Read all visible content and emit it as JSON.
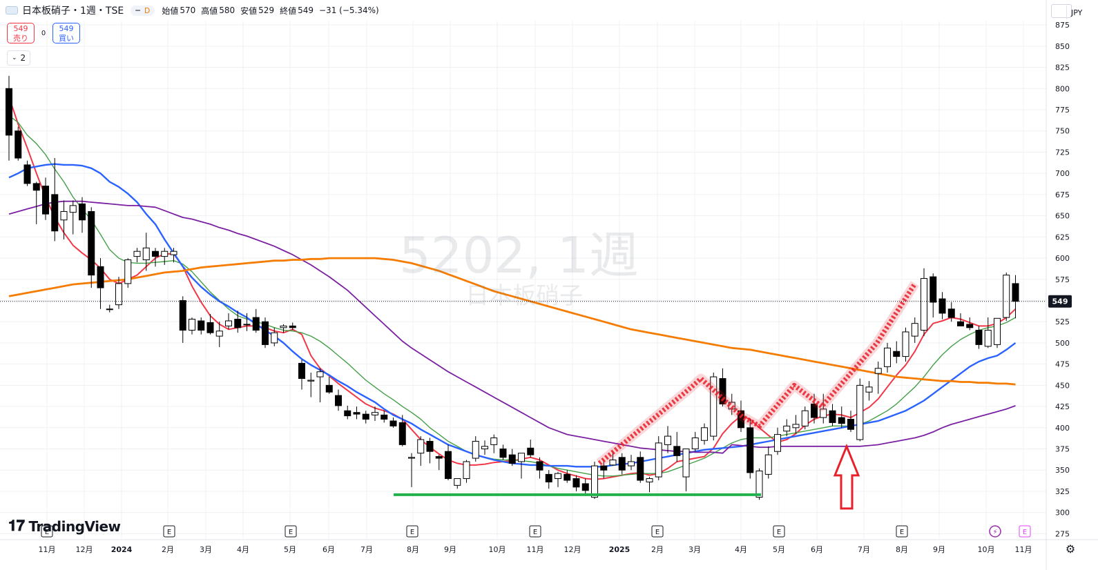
{
  "header": {
    "title": "日本板硝子・1週・TSE",
    "interval_badge": "D",
    "ohlc": [
      {
        "label": "始値",
        "value": "570"
      },
      {
        "label": "高値",
        "value": "580"
      },
      {
        "label": "安値",
        "value": "529"
      },
      {
        "label": "終値",
        "value": "549"
      },
      {
        "label": "",
        "value": "−31 (−5.34%)"
      }
    ]
  },
  "trade": {
    "sell_price": "549",
    "sell_label": "売り",
    "spread": "0",
    "buy_price": "549",
    "buy_label": "買い"
  },
  "indicators_toggle": "2",
  "watermark": {
    "symbol_line": "5202, 1週",
    "name_line": "日本板硝子"
  },
  "currency": "JPY",
  "branding": "TradingView",
  "colors": {
    "bull": "#ffffff",
    "bear": "#000000",
    "ma_red": "#f23645",
    "ma_green": "#43a047",
    "ma_blue": "#2962ff",
    "ma_purple": "#7b1fa2",
    "ma_orange": "#f57c00",
    "support_line": "#22b14c",
    "annotation": "#e8202a"
  },
  "chart_data": {
    "type": "candlestick",
    "y_ticks": [
      875,
      850,
      825,
      800,
      775,
      750,
      725,
      700,
      675,
      650,
      625,
      600,
      575,
      550,
      525,
      500,
      475,
      450,
      425,
      400,
      375,
      350,
      325,
      300,
      275
    ],
    "ylim": [
      268,
      880
    ],
    "last_price": "549",
    "x_labels": [
      "11月",
      "12月",
      "2024",
      "2月",
      "3月",
      "4月",
      "5月",
      "6月",
      "7月",
      "8月",
      "9月",
      "10月",
      "11月",
      "12月",
      "2025",
      "2月",
      "3月",
      "4月",
      "5月",
      "6月",
      "7月",
      "8月",
      "9月",
      "10月",
      "11月"
    ],
    "candles": [
      [
        800,
        815,
        715,
        745
      ],
      [
        750,
        755,
        715,
        718
      ],
      [
        710,
        715,
        685,
        688
      ],
      [
        688,
        690,
        640,
        680
      ],
      [
        685,
        695,
        645,
        652
      ],
      [
        675,
        718,
        620,
        632
      ],
      [
        645,
        668,
        622,
        655
      ],
      [
        654,
        668,
        628,
        662
      ],
      [
        664,
        672,
        630,
        645
      ],
      [
        655,
        660,
        565,
        580
      ],
      [
        590,
        600,
        540,
        565
      ],
      [
        540,
        545,
        536,
        540
      ],
      [
        545,
        578,
        540,
        570
      ],
      [
        570,
        600,
        565,
        598
      ],
      [
        602,
        612,
        595,
        608
      ],
      [
        598,
        630,
        585,
        612
      ],
      [
        608,
        612,
        590,
        602
      ],
      [
        602,
        612,
        592,
        608
      ],
      [
        604,
        612,
        595,
        608
      ],
      [
        550,
        555,
        500,
        515
      ],
      [
        515,
        530,
        510,
        528
      ],
      [
        526,
        530,
        510,
        515
      ],
      [
        524,
        534,
        510,
        512
      ],
      [
        508,
        525,
        495,
        514
      ],
      [
        520,
        535,
        516,
        526
      ],
      [
        528,
        538,
        512,
        518
      ],
      [
        522,
        535,
        514,
        522
      ],
      [
        530,
        540,
        512,
        515
      ],
      [
        525,
        530,
        494,
        498
      ],
      [
        500,
        518,
        496,
        512
      ],
      [
        518,
        522,
        512,
        520
      ],
      [
        520,
        524,
        515,
        518
      ],
      [
        476,
        480,
        445,
        458
      ],
      [
        455,
        465,
        436,
        456
      ],
      [
        460,
        470,
        430,
        466
      ],
      [
        450,
        460,
        440,
        442
      ],
      [
        438,
        445,
        420,
        426
      ],
      [
        420,
        426,
        410,
        414
      ],
      [
        418,
        425,
        410,
        416
      ],
      [
        416,
        420,
        405,
        410
      ],
      [
        415,
        425,
        408,
        418
      ],
      [
        415,
        420,
        406,
        410
      ],
      [
        408,
        412,
        400,
        402
      ],
      [
        406,
        415,
        378,
        380
      ],
      [
        364,
        370,
        330,
        365
      ],
      [
        370,
        390,
        355,
        386
      ],
      [
        384,
        388,
        358,
        372
      ],
      [
        366,
        368,
        350,
        364
      ],
      [
        372,
        380,
        338,
        340
      ],
      [
        332,
        340,
        328,
        340
      ],
      [
        340,
        362,
        335,
        360
      ],
      [
        364,
        390,
        360,
        384
      ],
      [
        375,
        385,
        368,
        378
      ],
      [
        380,
        392,
        370,
        388
      ],
      [
        375,
        380,
        362,
        365
      ],
      [
        368,
        375,
        355,
        358
      ],
      [
        360,
        370,
        340,
        370
      ],
      [
        376,
        386,
        365,
        368
      ],
      [
        360,
        365,
        340,
        350
      ],
      [
        345,
        350,
        328,
        336
      ],
      [
        340,
        348,
        330,
        346
      ],
      [
        345,
        350,
        335,
        338
      ],
      [
        340,
        344,
        325,
        330
      ],
      [
        334,
        340,
        322,
        326
      ],
      [
        318,
        360,
        316,
        355
      ],
      [
        355,
        362,
        340,
        350
      ],
      [
        356,
        372,
        355,
        362
      ],
      [
        365,
        370,
        345,
        350
      ],
      [
        355,
        368,
        350,
        360
      ],
      [
        365,
        372,
        335,
        338
      ],
      [
        336,
        342,
        324,
        340
      ],
      [
        342,
        390,
        338,
        382
      ],
      [
        380,
        402,
        370,
        390
      ],
      [
        378,
        395,
        360,
        367
      ],
      [
        342,
        372,
        325,
        375
      ],
      [
        375,
        395,
        372,
        388
      ],
      [
        385,
        405,
        380,
        400
      ],
      [
        390,
        465,
        385,
        460
      ],
      [
        458,
        470,
        425,
        428
      ],
      [
        422,
        440,
        415,
        430
      ],
      [
        420,
        432,
        395,
        400
      ],
      [
        400,
        410,
        340,
        347
      ],
      [
        318,
        352,
        315,
        349
      ],
      [
        345,
        378,
        340,
        368
      ],
      [
        372,
        400,
        368,
        392
      ],
      [
        396,
        410,
        390,
        402
      ],
      [
        400,
        415,
        393,
        404
      ],
      [
        402,
        425,
        398,
        420
      ],
      [
        428,
        440,
        405,
        412
      ],
      [
        412,
        440,
        405,
        422
      ],
      [
        420,
        428,
        402,
        406
      ],
      [
        412,
        425,
        400,
        405
      ],
      [
        410,
        420,
        395,
        398
      ],
      [
        386,
        458,
        384,
        450
      ],
      [
        442,
        455,
        432,
        448
      ],
      [
        464,
        478,
        440,
        470
      ],
      [
        472,
        500,
        465,
        494
      ],
      [
        490,
        502,
        476,
        484
      ],
      [
        484,
        518,
        478,
        513
      ],
      [
        508,
        530,
        500,
        523
      ],
      [
        515,
        588,
        508,
        576
      ],
      [
        578,
        582,
        530,
        548
      ],
      [
        552,
        560,
        528,
        535
      ],
      [
        540,
        548,
        525,
        530
      ],
      [
        525,
        535,
        520,
        520
      ],
      [
        522,
        530,
        515,
        518
      ],
      [
        515,
        520,
        493,
        498
      ],
      [
        496,
        530,
        494,
        515
      ],
      [
        498,
        528,
        494,
        529
      ],
      [
        530,
        583,
        526,
        580
      ],
      [
        570,
        580,
        529,
        549
      ]
    ],
    "series": [
      {
        "name": "",
        "color": "#f23645",
        "values": [
          790,
          758,
          730,
          700,
          672,
          648,
          630,
          615,
          606,
          598,
          588,
          575,
          570,
          575,
          580,
          590,
          600,
          605,
          605,
          590,
          567,
          548,
          532,
          522,
          516,
          518,
          520,
          520,
          518,
          514,
          512,
          516,
          510,
          485,
          470,
          461,
          452,
          444,
          436,
          428,
          423,
          420,
          416,
          410,
          398,
          386,
          377,
          369,
          362,
          358,
          356,
          356,
          357,
          359,
          360,
          361,
          363,
          365,
          362,
          356,
          350,
          346,
          343,
          340,
          339,
          340,
          342,
          344,
          346,
          347,
          344,
          346,
          352,
          360,
          362,
          364,
          366,
          376,
          393,
          405,
          414,
          410,
          400,
          391,
          383,
          386,
          393,
          403,
          410,
          414,
          416,
          415,
          412,
          418,
          424,
          434,
          448,
          462,
          474,
          490,
          510,
          523,
          526,
          530,
          528,
          524,
          520,
          520,
          523,
          530,
          540
        ]
      },
      {
        "name": "",
        "color": "#43a047",
        "values": [
          768,
          760,
          745,
          735,
          722,
          705,
          690,
          672,
          658,
          645,
          628,
          610,
          600,
          595,
          594,
          594,
          595,
          596,
          597,
          593,
          584,
          572,
          560,
          550,
          540,
          532,
          528,
          525,
          522,
          518,
          515,
          514,
          512,
          508,
          502,
          494,
          485,
          476,
          466,
          456,
          448,
          440,
          433,
          425,
          418,
          410,
          400,
          392,
          384,
          378,
          372,
          368,
          365,
          363,
          362,
          362,
          361,
          360,
          358,
          355,
          352,
          350,
          348,
          346,
          344,
          343,
          343,
          344,
          345,
          346,
          346,
          346,
          348,
          352,
          356,
          360,
          364,
          370,
          376,
          382,
          386,
          388,
          388,
          388,
          390,
          392,
          394,
          396,
          398,
          400,
          402,
          402,
          402,
          404,
          408,
          414,
          420,
          428,
          438,
          448,
          460,
          474,
          486,
          496,
          504,
          510,
          515,
          518,
          520,
          524,
          530
        ]
      },
      {
        "name": "",
        "color": "#2962ff",
        "values": [
          695,
          700,
          706,
          708,
          710,
          711,
          710,
          710,
          709,
          706,
          700,
          690,
          684,
          676,
          666,
          652,
          640,
          622,
          606,
          590,
          577,
          566,
          557,
          549,
          543,
          536,
          530,
          522,
          515,
          508,
          500,
          490,
          481,
          474,
          468,
          462,
          455,
          449,
          442,
          436,
          430,
          422,
          415,
          410,
          405,
          398,
          392,
          386,
          380,
          376,
          372,
          368,
          365,
          362,
          360,
          358,
          357,
          356,
          356,
          355,
          355,
          355,
          354,
          354,
          354,
          354,
          356,
          357,
          358,
          360,
          362,
          364,
          366,
          368,
          370,
          372,
          374,
          375,
          376,
          377,
          378,
          380,
          382,
          384,
          386,
          388,
          390,
          392,
          394,
          396,
          398,
          400,
          402,
          404,
          406,
          408,
          412,
          416,
          420,
          426,
          432,
          440,
          448,
          456,
          464,
          472,
          478,
          482,
          485,
          492,
          500
        ]
      },
      {
        "name": "",
        "color": "#7b1fa2",
        "values": [
          652,
          655,
          658,
          661,
          664,
          666,
          667,
          667,
          667,
          666,
          665,
          664,
          663,
          662,
          662,
          661,
          660,
          656,
          652,
          648,
          646,
          643,
          640,
          636,
          633,
          629,
          626,
          622,
          618,
          614,
          609,
          604,
          598,
          592,
          585,
          578,
          570,
          562,
          552,
          542,
          532,
          522,
          512,
          502,
          494,
          487,
          480,
          473,
          466,
          460,
          454,
          448,
          442,
          436,
          430,
          424,
          418,
          412,
          406,
          400,
          396,
          392,
          390,
          388,
          386,
          384,
          382,
          380,
          378,
          376,
          375,
          374,
          373,
          372,
          372,
          371,
          371,
          371,
          370,
          380,
          379,
          378,
          377,
          377,
          378,
          378,
          378,
          378,
          378,
          378,
          378,
          378,
          378,
          378,
          379,
          380,
          382,
          384,
          386,
          388,
          391,
          395,
          400,
          404,
          407,
          410,
          413,
          416,
          419,
          422,
          426
        ]
      },
      {
        "name": "",
        "color": "#f57c00",
        "values": [
          555,
          557,
          559,
          561,
          563,
          565,
          567,
          569,
          570,
          571,
          572,
          573,
          574,
          575,
          577,
          579,
          581,
          583,
          584,
          585,
          587,
          589,
          590,
          591,
          592,
          593,
          594,
          595,
          596,
          597,
          597,
          598,
          598,
          599,
          599,
          600,
          600,
          600,
          600,
          600,
          600,
          599,
          598,
          596,
          594,
          591,
          588,
          585,
          581,
          577,
          573,
          569,
          565,
          561,
          558,
          555,
          552,
          549,
          546,
          543,
          540,
          537,
          534,
          531,
          528,
          525,
          522,
          519,
          516,
          514,
          512,
          510,
          508,
          506,
          504,
          502,
          500,
          498,
          496,
          494,
          493,
          492,
          490,
          488,
          486,
          484,
          482,
          480,
          478,
          476,
          474,
          472,
          470,
          468,
          466,
          464,
          462,
          460,
          459,
          458,
          457,
          456,
          455,
          455,
          454,
          454,
          453,
          453,
          452,
          452,
          451
        ]
      }
    ]
  }
}
